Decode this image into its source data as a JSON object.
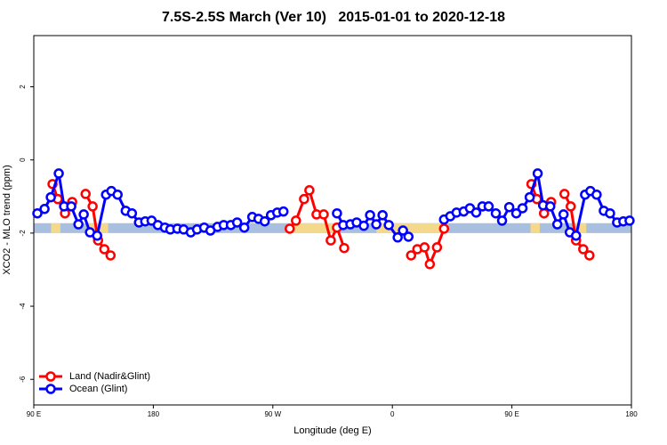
{
  "chart_data": {
    "type": "line",
    "title": "7.5S-2.5S March (Ver 10)   2015-01-01 to 2020-12-18",
    "x_label": "Longitude (deg E)",
    "y_label": "XCO2 - MLO trend (ppm)",
    "xlim": [
      90,
      540
    ],
    "ylim": [
      -6.7,
      3.4
    ],
    "xticks": [
      {
        "value": 90,
        "label": "90 E"
      },
      {
        "value": 180,
        "label": "180"
      },
      {
        "value": 270,
        "label": "90 W"
      },
      {
        "value": 360,
        "label": "0"
      },
      {
        "value": 450,
        "label": "90 E"
      },
      {
        "value": 540,
        "label": "180"
      }
    ],
    "yticks": [
      -6,
      -4,
      -2,
      0,
      2
    ],
    "legend": "bottom-left",
    "band": [
      -2.0,
      -1.73
    ],
    "band_color": "#a9bfdf",
    "land_color": "#f5d98a",
    "land_spans": [
      [
        103,
        110
      ],
      [
        131,
        146
      ],
      [
        283,
        320
      ],
      [
        348,
        402
      ],
      [
        464,
        471
      ],
      [
        496,
        506
      ]
    ],
    "series": [
      {
        "name": "Land (Nadir&Glint)",
        "color": "#ff0000",
        "x": [
          104.1,
          108.1,
          113.5,
          null,
          118.9,
          null,
          129.0,
          134.3,
          138.4,
          143.1,
          147.8,
          null,
          282.7,
          287.4,
          293.5,
          297.5,
          302.9,
          308.3,
          313.6,
          318.3,
          323.7,
          null,
          374.1,
          378.8,
          384.2,
          388.2,
          393.6,
          398.9,
          null,
          464.7,
          468.8,
          474.2,
          null,
          479.5,
          null,
          489.6,
          494.3,
          498.3,
          503.7,
          508.4
        ],
        "values": [
          -0.66,
          -1.07,
          -1.46,
          null,
          -1.15,
          null,
          -0.93,
          -1.27,
          -2.2,
          -2.44,
          -2.61,
          null,
          -1.88,
          -1.66,
          -1.07,
          -0.83,
          -1.49,
          -1.49,
          -2.2,
          -1.85,
          -2.41,
          null,
          -2.61,
          -2.44,
          -2.39,
          -2.85,
          -2.39,
          -1.88,
          null,
          -0.66,
          -1.07,
          -1.46,
          null,
          -1.15,
          null,
          -0.93,
          -1.27,
          -2.2,
          -2.44,
          -2.61
        ]
      },
      {
        "name": "Ocean (Glint)",
        "color": "#0000ff",
        "x": [
          92.7,
          98.1,
          102.8,
          108.8,
          112.8,
          118.2,
          123.6,
          127.6,
          132.3,
          137.7,
          144.4,
          148.4,
          153.1,
          159.2,
          163.9,
          169.2,
          173.9,
          178.7,
          183.4,
          188.7,
          192.8,
          198.1,
          202.8,
          208.2,
          212.9,
          218.3,
          223.0,
          228.3,
          233.0,
          238.4,
          243.1,
          248.5,
          254.5,
          259.2,
          263.9,
          268.6,
          273.3,
          278.0,
          null,
          318.3,
          323.0,
          328.4,
          333.1,
          338.5,
          343.2,
          347.9,
          352.6,
          357.3,
          364.0,
          368.0,
          372.1,
          null,
          398.9,
          403.6,
          408.3,
          413.7,
          418.4,
          423.1,
          427.8,
          432.5,
          437.9,
          442.6,
          448.0,
          453.3,
          458.0,
          463.4,
          469.4,
          473.5,
          478.9,
          484.2,
          488.9,
          493.6,
          498.3,
          505.1,
          509.1,
          513.8,
          519.2,
          523.9,
          529.2,
          533.9,
          538.6
        ],
        "values": [
          -1.46,
          -1.34,
          -1.02,
          -0.37,
          -1.27,
          -1.27,
          -1.76,
          -1.49,
          -1.98,
          -2.07,
          -0.95,
          -0.85,
          -0.95,
          -1.39,
          -1.46,
          -1.71,
          -1.68,
          -1.66,
          -1.78,
          -1.85,
          -1.9,
          -1.88,
          -1.9,
          -1.98,
          -1.9,
          -1.85,
          -1.93,
          -1.83,
          -1.78,
          -1.78,
          -1.71,
          -1.85,
          -1.56,
          -1.61,
          -1.68,
          -1.51,
          -1.44,
          -1.41,
          null,
          -1.46,
          -1.78,
          -1.76,
          -1.71,
          -1.8,
          -1.51,
          -1.76,
          -1.51,
          -1.78,
          -2.12,
          -1.93,
          -2.1,
          null,
          -1.63,
          -1.54,
          -1.44,
          -1.41,
          -1.32,
          -1.44,
          -1.27,
          -1.27,
          -1.46,
          -1.66,
          -1.29,
          -1.46,
          -1.32,
          -1.02,
          -0.37,
          -1.24,
          -1.27,
          -1.76,
          -1.49,
          -1.98,
          -2.07,
          -0.95,
          -0.85,
          -0.95,
          -1.39,
          -1.46,
          -1.71,
          -1.68,
          -1.66
        ]
      }
    ]
  }
}
